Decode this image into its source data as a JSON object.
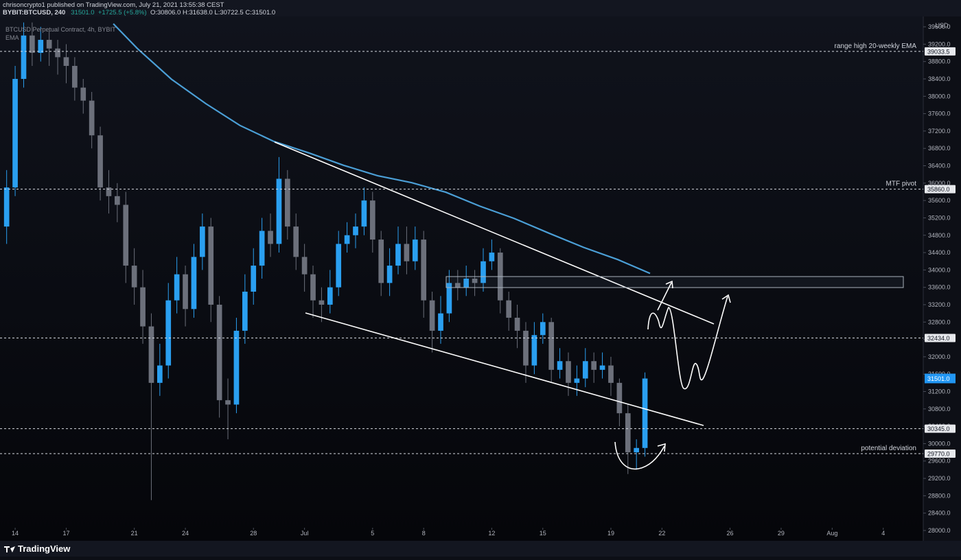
{
  "header": {
    "published": "chrisoncrypto1 published on TradingView.com, July 21, 2021 13:55:38 CEST",
    "symbol": "BYBIT:BTCUSD, 240",
    "last": "31501.0",
    "change": "+1725.5 (+5.8%)",
    "ohlc": "O:30806.0 H:31638.0 L:30722.5 C:31501.0"
  },
  "footer": {
    "brand": "TradingView"
  },
  "chart_data": {
    "type": "candlestick",
    "title": "BTCUSD Perpetual Contract, 4h, BYBIT",
    "y_unit": "USD",
    "grid": false,
    "up_color": "#2a9ff0",
    "down_color": "#6c707b",
    "x": [
      -0.5,
      0,
      0.5,
      1,
      1.5,
      2,
      2.5,
      3,
      3.5,
      4,
      4.5,
      5,
      5.5,
      6,
      6.5,
      7,
      7.5,
      8,
      8.5,
      9,
      9.5,
      10,
      10.5,
      11,
      11.5,
      12,
      12.5,
      13,
      13.5,
      14,
      14.5,
      15,
      15.5,
      16,
      16.5,
      17,
      17.5,
      18,
      18.5,
      19,
      19.5,
      20,
      20.5,
      21,
      21.5,
      22,
      22.5,
      23,
      23.5,
      24,
      24.5,
      25,
      25.5,
      26,
      26.5,
      27,
      27.5,
      28,
      28.5,
      29,
      29.5,
      30,
      30.5,
      31,
      31.5,
      32,
      32.5,
      33,
      33.5,
      34,
      34.5,
      35,
      35.5,
      36,
      36.5,
      37
    ],
    "open": [
      35000,
      35900,
      38400,
      39400,
      39000,
      39300,
      39100,
      38900,
      38700,
      38200,
      37900,
      37100,
      35900,
      35700,
      35500,
      34100,
      33600,
      32700,
      31400,
      31800,
      33300,
      33900,
      33100,
      34300,
      35000,
      33200,
      31000,
      30900,
      32600,
      33500,
      34100,
      34900,
      34600,
      36100,
      35000,
      34300,
      33900,
      33300,
      33200,
      33600,
      34600,
      34800,
      35000,
      35600,
      34700,
      33700,
      34100,
      34600,
      34200,
      34700,
      33300,
      32600,
      33000,
      33700,
      33600,
      33800,
      33700,
      34200,
      34400,
      33300,
      32900,
      32600,
      31800,
      32500,
      32800,
      31700,
      31900,
      31400,
      31500,
      31900,
      31700,
      31800,
      31400,
      30700,
      29800,
      29900
    ],
    "high": [
      36300,
      38700,
      39700,
      39700,
      39600,
      39500,
      39300,
      39200,
      38900,
      38400,
      38100,
      37300,
      36300,
      36000,
      35800,
      34500,
      34000,
      33000,
      32300,
      33700,
      34300,
      34100,
      34600,
      35300,
      35200,
      33400,
      31500,
      32900,
      33900,
      34500,
      35200,
      35300,
      36600,
      36300,
      35300,
      34600,
      34100,
      33600,
      34000,
      34900,
      35100,
      35300,
      35900,
      35800,
      34900,
      34500,
      35000,
      35000,
      35000,
      34900,
      33500,
      33400,
      34000,
      34000,
      34100,
      34000,
      34500,
      34700,
      34500,
      33500,
      33200,
      32800,
      32800,
      33000,
      32900,
      32200,
      32100,
      31800,
      32200,
      32100,
      32100,
      32000,
      31500,
      30900,
      30100,
      31640
    ],
    "low": [
      34600,
      35700,
      38200,
      38700,
      38800,
      38700,
      38500,
      38300,
      37900,
      37600,
      36800,
      35600,
      35300,
      35100,
      33700,
      33200,
      32300,
      28700,
      31100,
      31500,
      33000,
      32700,
      32900,
      34000,
      32800,
      30600,
      30100,
      30700,
      32300,
      33200,
      33800,
      34300,
      34400,
      34700,
      34000,
      33500,
      32900,
      32800,
      33000,
      33400,
      34400,
      34500,
      34800,
      34400,
      33400,
      33400,
      33900,
      33900,
      34000,
      32900,
      32100,
      32300,
      32800,
      33300,
      33400,
      33400,
      33500,
      34000,
      33000,
      32600,
      32200,
      31400,
      31600,
      32300,
      31400,
      31500,
      31100,
      31100,
      31300,
      31400,
      31500,
      31100,
      30400,
      29300,
      29400,
      29700
    ],
    "close": [
      35900,
      38400,
      39400,
      39000,
      39300,
      39100,
      38900,
      38700,
      38200,
      37900,
      37100,
      35900,
      35700,
      35500,
      34100,
      33600,
      32700,
      31400,
      31800,
      33300,
      33900,
      33100,
      34300,
      35000,
      33200,
      31000,
      30900,
      32600,
      33500,
      34100,
      34900,
      34600,
      36100,
      35000,
      34300,
      33900,
      33300,
      33200,
      33600,
      34600,
      34800,
      35000,
      35600,
      34700,
      33700,
      34100,
      34600,
      34200,
      34700,
      33300,
      32600,
      33000,
      33700,
      33600,
      33800,
      33700,
      34200,
      34400,
      33300,
      32900,
      32600,
      31800,
      32500,
      32800,
      31700,
      31900,
      31400,
      31500,
      31900,
      31700,
      31800,
      31400,
      30700,
      29800,
      29900,
      31500
    ],
    "ema": {
      "name": "EMA",
      "color": "#4b9fd6",
      "x": [
        5.77,
        7.18,
        9.19,
        11.2,
        13.2,
        15.2,
        17.3,
        19.3,
        21.3,
        23.3,
        25.3,
        27.3,
        29.3,
        31.4,
        33.4,
        35.4,
        37.3
      ],
      "values": [
        39670,
        39100,
        38390,
        37830,
        37330,
        36960,
        36690,
        36410,
        36170,
        36010,
        35790,
        35470,
        35190,
        34840,
        34520,
        34240,
        33920
      ]
    },
    "levels": [
      {
        "price": {
          "value": 39033.5,
          "label": "39033.5"
        },
        "text": "range high 20-weekly EMA"
      },
      {
        "price": {
          "value": 35860,
          "label": "35860.0"
        },
        "text": "MTF pivot"
      },
      {
        "price": {
          "value": 32434,
          "label": "32434.0"
        }
      },
      {
        "price": {
          "value": 30345,
          "label": "30345.0"
        }
      },
      {
        "price": {
          "value": 29770,
          "label": "29770.0"
        },
        "text": "potential deviation"
      }
    ],
    "last_price": {
      "value": 31501,
      "label": "31501.0",
      "color": "#2196f3"
    },
    "xlim": [
      -0.89,
      53.35
    ],
    "ylim": [
      27810,
      39680
    ],
    "xticks": [
      {
        "value": 0,
        "label": "14"
      },
      {
        "value": 3,
        "label": "17"
      },
      {
        "value": 7,
        "label": "21"
      },
      {
        "value": 10,
        "label": "24"
      },
      {
        "value": 14,
        "label": "28"
      },
      {
        "value": 17,
        "label": "Jul"
      },
      {
        "value": 21,
        "label": "5"
      },
      {
        "value": 24,
        "label": "8"
      },
      {
        "value": 28,
        "label": "12"
      },
      {
        "value": 31,
        "label": "15"
      },
      {
        "value": 35,
        "label": "19"
      },
      {
        "value": 38,
        "label": "22"
      },
      {
        "value": 42,
        "label": "26"
      },
      {
        "value": 45,
        "label": "29"
      },
      {
        "value": 48,
        "label": "Aug"
      },
      {
        "value": 51,
        "label": "4"
      }
    ],
    "yticks": [
      {
        "value": 28000,
        "label": "28000.0"
      },
      {
        "value": 28400,
        "label": "28400.0"
      },
      {
        "value": 28800,
        "label": "28800.0"
      },
      {
        "value": 29200,
        "label": "29200.0"
      },
      {
        "value": 29600,
        "label": "29600.0"
      },
      {
        "value": 30000,
        "label": "30000.0"
      },
      {
        "value": 30400,
        "label": "30400.0"
      },
      {
        "value": 30800,
        "label": "30800.0"
      },
      {
        "value": 31200,
        "label": "31200.0"
      },
      {
        "value": 31600,
        "label": "31600.0"
      },
      {
        "value": 32000,
        "label": "32000.0"
      },
      {
        "value": 32400,
        "label": "32400.0"
      },
      {
        "value": 32800,
        "label": "32800.0"
      },
      {
        "value": 33200,
        "label": "33200.0"
      },
      {
        "value": 33600,
        "label": "33600.0"
      },
      {
        "value": 34000,
        "label": "34000.0"
      },
      {
        "value": 34400,
        "label": "34400.0"
      },
      {
        "value": 34800,
        "label": "34800.0"
      },
      {
        "value": 35200,
        "label": "35200.0"
      },
      {
        "value": 35600,
        "label": "35600.0"
      },
      {
        "value": 36000,
        "label": "36000.0"
      },
      {
        "value": 36400,
        "label": "36400.0"
      },
      {
        "value": 36800,
        "label": "36800.0"
      },
      {
        "value": 37200,
        "label": "37200.0"
      },
      {
        "value": 37600,
        "label": "37600.0"
      },
      {
        "value": 38000,
        "label": "38000.0"
      },
      {
        "value": 38400,
        "label": "38400.0"
      },
      {
        "value": 38800,
        "label": "38800.0"
      },
      {
        "value": 39200,
        "label": "39200.0"
      },
      {
        "value": 39600,
        "label": "39600.0"
      }
    ]
  }
}
